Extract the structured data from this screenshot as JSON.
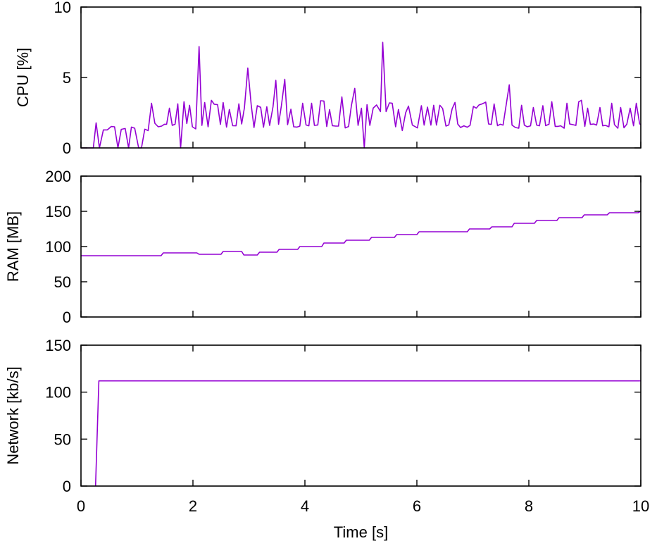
{
  "line_color": "#9400d3",
  "chart_data": [
    {
      "type": "line",
      "ylabel": "CPU [%]",
      "xlim": [
        0,
        10
      ],
      "ylim": [
        0,
        10
      ],
      "yticks": [
        0,
        5,
        10
      ],
      "grid": false,
      "series": [
        {
          "name": "CPU",
          "x": [
            0,
            0.22,
            0.27,
            0.33,
            0.4,
            0.47,
            0.54,
            0.6,
            0.66,
            0.72,
            0.79,
            0.85,
            0.9,
            0.96,
            1.03,
            1.08,
            1.14,
            1.2,
            1.26,
            1.32,
            1.38,
            1.44,
            1.49,
            1.53,
            1.58,
            1.63,
            1.68,
            1.73,
            1.78,
            1.84,
            1.89,
            1.94,
            1.99,
            2.05,
            2.11,
            2.16,
            2.21,
            2.27,
            2.33,
            2.38,
            2.44,
            2.49,
            2.54,
            2.6,
            2.65,
            2.71,
            2.77,
            2.82,
            2.87,
            2.92,
            2.98,
            3.04,
            3.09,
            3.15,
            3.21,
            3.26,
            3.32,
            3.37,
            3.43,
            3.48,
            3.53,
            3.58,
            3.64,
            3.69,
            3.75,
            3.8,
            3.86,
            3.91,
            3.96,
            4.02,
            4.07,
            4.12,
            4.17,
            4.23,
            4.28,
            4.34,
            4.39,
            4.44,
            4.49,
            4.55,
            4.6,
            4.66,
            4.72,
            4.78,
            4.83,
            4.89,
            4.95,
            5.01,
            5.06,
            5.11,
            5.16,
            5.22,
            5.28,
            5.35,
            5.39,
            5.45,
            5.51,
            5.56,
            5.62,
            5.67,
            5.74,
            5.8,
            5.85,
            5.92,
            6.01,
            6.08,
            6.13,
            6.19,
            6.25,
            6.3,
            6.35,
            6.41,
            6.46,
            6.52,
            6.57,
            6.63,
            6.68,
            6.73,
            6.78,
            6.84,
            6.9,
            6.95,
            7.01,
            7.06,
            7.11,
            7.17,
            7.23,
            7.28,
            7.33,
            7.38,
            7.44,
            7.49,
            7.54,
            7.65,
            7.7,
            7.76,
            7.82,
            7.87,
            7.92,
            7.97,
            8.03,
            8.08,
            8.14,
            8.19,
            8.25,
            8.3,
            8.36,
            8.41,
            8.47,
            8.52,
            8.57,
            8.63,
            8.68,
            8.73,
            8.79,
            8.84,
            8.89,
            8.94,
            9.0,
            9.05,
            9.1,
            9.16,
            9.21,
            9.27,
            9.32,
            9.37,
            9.43,
            9.48,
            9.53,
            9.59,
            9.64,
            9.7,
            9.75,
            9.81,
            9.87,
            9.92,
            9.98,
            10.0
          ],
          "y": [
            0,
            0,
            1.78,
            0,
            1.28,
            1.28,
            1.52,
            1.5,
            0,
            1.32,
            1.38,
            0,
            1.48,
            1.4,
            0,
            0,
            1.33,
            1.23,
            3.17,
            1.75,
            1.5,
            1.55,
            1.68,
            1.68,
            2.82,
            1.6,
            1.68,
            3.13,
            0,
            3.28,
            1.73,
            3.03,
            1.5,
            1.35,
            7.2,
            1.6,
            3.22,
            1.5,
            3.38,
            3.1,
            3.07,
            1.67,
            3.22,
            1.48,
            2.73,
            1.58,
            1.57,
            3.13,
            1.7,
            2.85,
            5.67,
            3.07,
            1.45,
            3.0,
            2.88,
            1.47,
            2.92,
            1.6,
            2.92,
            4.8,
            1.68,
            3.0,
            4.87,
            1.65,
            2.75,
            1.5,
            1.48,
            1.55,
            3.17,
            1.63,
            1.57,
            3.17,
            1.6,
            1.63,
            3.35,
            3.33,
            1.52,
            2.72,
            1.58,
            1.55,
            1.55,
            3.62,
            1.42,
            1.52,
            3.0,
            4.23,
            1.6,
            2.82,
            0,
            3.07,
            1.6,
            2.83,
            3.05,
            2.58,
            7.5,
            2.58,
            3.2,
            3.17,
            1.5,
            2.73,
            1.23,
            2.5,
            2.97,
            1.62,
            1.42,
            3.0,
            1.62,
            2.9,
            1.62,
            3.03,
            1.62,
            3.03,
            2.8,
            1.55,
            1.63,
            2.78,
            3.23,
            1.7,
            1.45,
            1.57,
            1.47,
            1.6,
            2.95,
            2.82,
            3.05,
            3.13,
            3.25,
            1.7,
            1.67,
            3.12,
            1.58,
            1.68,
            1.62,
            4.48,
            1.62,
            1.45,
            1.4,
            3.03,
            1.62,
            1.5,
            1.57,
            2.87,
            1.62,
            1.57,
            3.0,
            1.58,
            1.68,
            3.28,
            1.53,
            1.53,
            1.57,
            1.4,
            3.17,
            1.7,
            1.65,
            1.6,
            3.27,
            3.38,
            1.53,
            2.82,
            1.67,
            1.7,
            1.62,
            2.87,
            1.57,
            1.6,
            1.5,
            3.17,
            1.65,
            1.4,
            2.87,
            1.43,
            1.68,
            2.82,
            1.57,
            3.17,
            1.7,
            1.67
          ]
        }
      ]
    },
    {
      "type": "line",
      "ylabel": "RAM [MB]",
      "xlim": [
        0,
        10
      ],
      "ylim": [
        0,
        200
      ],
      "yticks": [
        0,
        50,
        100,
        150,
        200
      ],
      "grid": false,
      "series": [
        {
          "name": "RAM",
          "x": [
            0,
            1.43,
            1.47,
            2.07,
            2.11,
            2.5,
            2.54,
            2.87,
            2.91,
            3.15,
            3.19,
            3.5,
            3.54,
            3.87,
            3.91,
            4.3,
            4.34,
            4.7,
            4.74,
            5.15,
            5.19,
            5.6,
            5.64,
            6.0,
            6.04,
            6.9,
            6.94,
            7.3,
            7.34,
            7.7,
            7.74,
            8.1,
            8.14,
            8.5,
            8.54,
            8.95,
            8.99,
            9.4,
            9.44,
            9.95,
            10.0
          ],
          "y": [
            87,
            87,
            91,
            91,
            89,
            89,
            93,
            93,
            88,
            88,
            92,
            92,
            96,
            96,
            100,
            100,
            105,
            105,
            109,
            109,
            113,
            113,
            117,
            117,
            121,
            121,
            125,
            125,
            128,
            128,
            133,
            133,
            137,
            137,
            141,
            141,
            145,
            145,
            148,
            148,
            150
          ]
        }
      ]
    },
    {
      "type": "line",
      "ylabel": "Network [kb/s]",
      "xlabel": "Time [s]",
      "xlim": [
        0,
        10
      ],
      "ylim": [
        0,
        150
      ],
      "xticks": [
        0,
        2,
        4,
        6,
        8,
        10
      ],
      "yticks": [
        0,
        50,
        100,
        150
      ],
      "grid": false,
      "series": [
        {
          "name": "Network",
          "x": [
            0.26,
            0.32,
            10.0
          ],
          "y": [
            0,
            112,
            112
          ]
        }
      ]
    }
  ]
}
